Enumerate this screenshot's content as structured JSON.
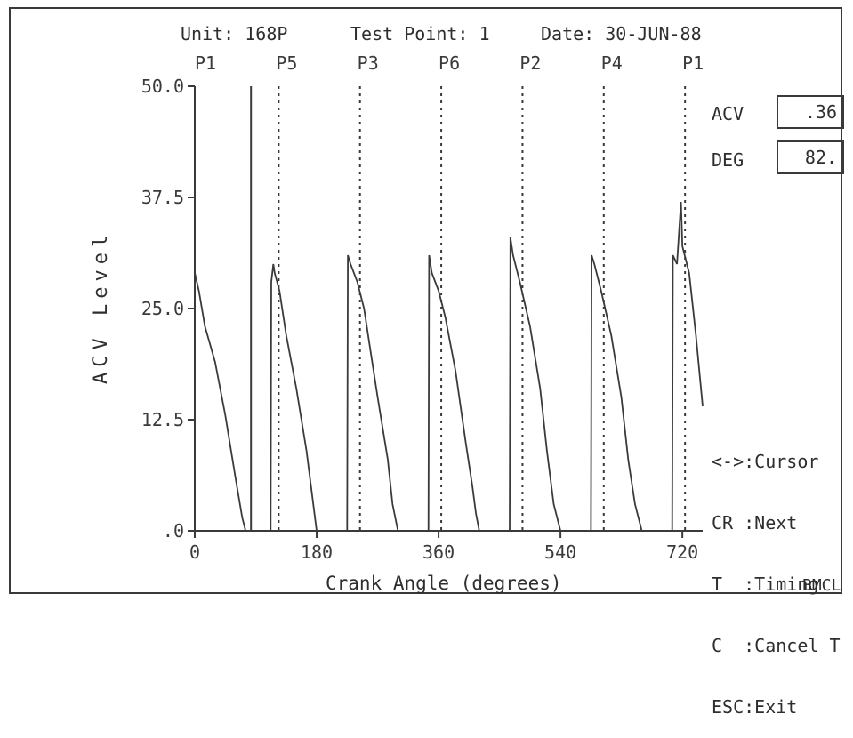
{
  "header": {
    "unit": "Unit: 168P",
    "test_point": "Test Point: 1",
    "date": "Date: 30-JUN-88"
  },
  "readouts": {
    "acv_label": "ACV",
    "acv_value": ".36",
    "deg_label": "DEG",
    "deg_value": "82."
  },
  "help_keys": [
    "<->:Cursor",
    "CR :Next",
    "T  :Timing",
    "C  :Cancel T",
    "ESC:Exit"
  ],
  "footer_tag": "BMCL",
  "chart_data": {
    "type": "line",
    "title": "",
    "xlabel": "Crank Angle (degrees)",
    "ylabel": "ACV Level",
    "xlim": [
      0,
      750
    ],
    "ylim": [
      0,
      50
    ],
    "x_ticks": [
      0,
      180,
      360,
      540,
      720
    ],
    "x_tick_labels": [
      "0",
      "180",
      "360",
      "540",
      "720"
    ],
    "y_ticks": [
      0,
      12.5,
      25,
      37.5,
      50
    ],
    "y_tick_labels": [
      ".0",
      "12.5",
      "25.0",
      "37.5",
      "50.0"
    ],
    "cursor_x": 83,
    "cylinders": [
      {
        "label": "P1",
        "x": 0
      },
      {
        "label": "P5",
        "x": 120
      },
      {
        "label": "P3",
        "x": 240
      },
      {
        "label": "P6",
        "x": 360
      },
      {
        "label": "P2",
        "x": 480
      },
      {
        "label": "P4",
        "x": 600
      },
      {
        "label": "P1",
        "x": 720
      }
    ],
    "series": [
      {
        "x": [
          0,
          6,
          15,
          30,
          45,
          60,
          70,
          75,
          90,
          112,
          113,
          116,
          118,
          125,
          135,
          150,
          165,
          175,
          180,
          192,
          225,
          226,
          230,
          240,
          250,
          260,
          270,
          285,
          292,
          300,
          312,
          345,
          346,
          350,
          360,
          370,
          385,
          400,
          410,
          415,
          420,
          432,
          465,
          466,
          470,
          480,
          495,
          510,
          520,
          530,
          540,
          552,
          585,
          586,
          590,
          600,
          615,
          630,
          640,
          650,
          660,
          672,
          705,
          706,
          712,
          718,
          720,
          730,
          740,
          750
        ],
        "y": [
          29,
          27,
          23,
          19,
          13,
          6,
          1.5,
          0,
          0,
          0,
          28,
          30,
          29,
          27,
          22,
          16,
          9,
          3,
          0,
          0,
          0,
          31,
          30,
          28,
          25,
          20,
          15,
          8,
          3,
          0,
          0,
          0,
          31,
          29,
          27,
          24,
          18,
          10,
          5,
          2,
          0,
          0,
          0,
          33,
          31,
          28,
          23,
          16,
          9,
          3,
          0,
          0,
          0,
          31,
          30,
          27,
          22,
          15,
          8,
          3,
          0,
          0,
          0,
          31,
          30,
          37,
          32,
          29,
          22,
          14
        ]
      }
    ]
  }
}
